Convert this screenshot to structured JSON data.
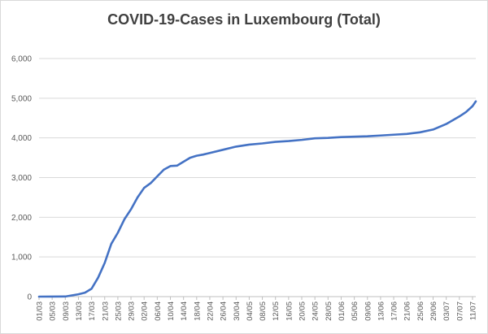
{
  "chart_data": {
    "type": "line",
    "title": "COVID-19-Cases in Luxembourg (Total)",
    "xlabel": "",
    "ylabel": "",
    "ylim": [
      0,
      6000
    ],
    "y_ticks": [
      "0",
      "1,000",
      "2,000",
      "3,000",
      "4,000",
      "5,000",
      "6,000"
    ],
    "x_tick_labels": [
      "01/03",
      "05/03",
      "09/03",
      "13/03",
      "17/03",
      "21/03",
      "25/03",
      "29/03",
      "02/04",
      "06/04",
      "10/04",
      "14/04",
      "18/04",
      "22/04",
      "26/04",
      "30/04",
      "04/05",
      "08/05",
      "12/05",
      "16/05",
      "20/05",
      "24/05",
      "28/05",
      "01/06",
      "05/06",
      "09/06",
      "13/06",
      "17/06",
      "21/06",
      "25/06",
      "29/06",
      "03/07",
      "07/07",
      "11/07"
    ],
    "grid": "horizontal",
    "legend": "none",
    "line_color": "#4472c4",
    "series": [
      {
        "x": [
          "01/03",
          "05/03",
          "09/03",
          "13/03",
          "15/03",
          "17/03",
          "19/03",
          "21/03",
          "23/03",
          "25/03",
          "27/03",
          "29/03",
          "31/03",
          "02/04",
          "04/04",
          "06/04",
          "08/04",
          "10/04",
          "12/04",
          "14/04",
          "16/04",
          "18/04",
          "20/04",
          "22/04",
          "26/04",
          "30/04",
          "04/05",
          "08/05",
          "12/05",
          "16/05",
          "20/05",
          "24/05",
          "28/05",
          "01/06",
          "05/06",
          "09/06",
          "13/06",
          "17/06",
          "21/06",
          "25/06",
          "29/06",
          "03/07",
          "07/07",
          "09/07",
          "11/07",
          "12/07"
        ],
        "values": [
          0,
          1,
          3,
          59,
          100,
          200,
          480,
          850,
          1330,
          1610,
          1950,
          2200,
          2500,
          2740,
          2860,
          3030,
          3200,
          3290,
          3300,
          3400,
          3500,
          3550,
          3580,
          3620,
          3700,
          3780,
          3830,
          3860,
          3900,
          3920,
          3950,
          3990,
          4000,
          4020,
          4030,
          4040,
          4060,
          4080,
          4100,
          4140,
          4210,
          4350,
          4540,
          4650,
          4800,
          4920
        ]
      }
    ]
  }
}
